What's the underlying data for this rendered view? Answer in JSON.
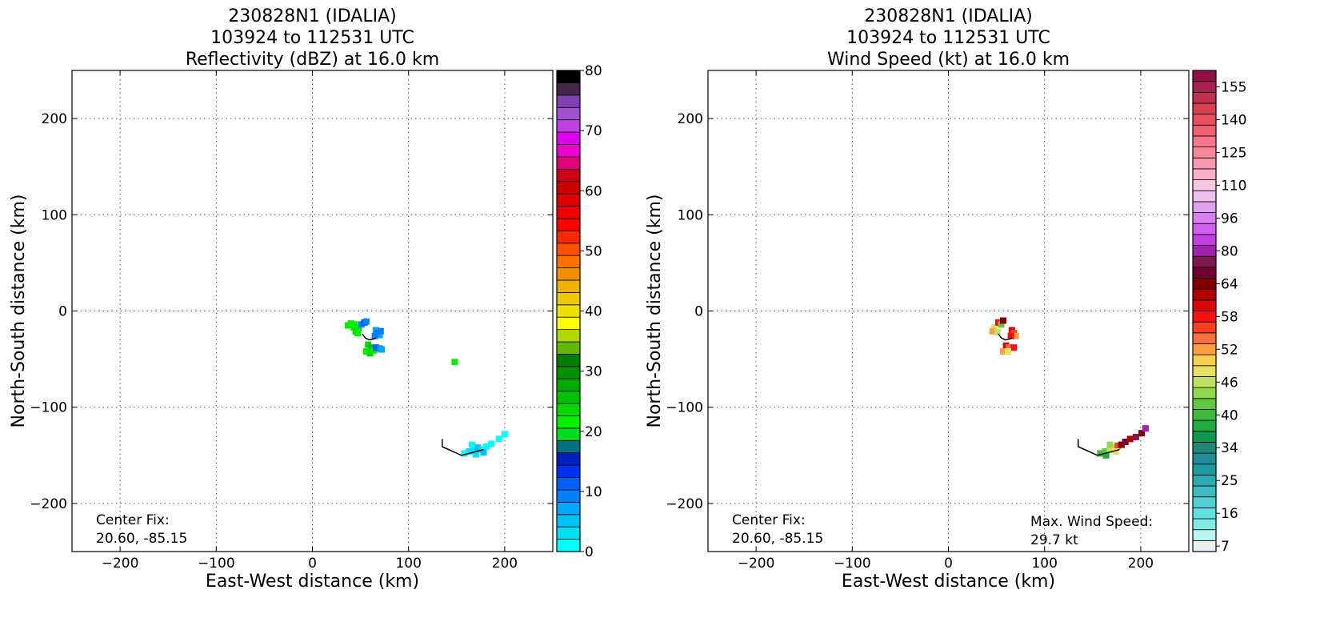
{
  "chart_data": [
    {
      "type": "heatmap",
      "title_lines": [
        "230828N1 (IDALIA)",
        "103924 to 112531 UTC",
        "Reflectivity (dBZ) at 16.0 km"
      ],
      "xlabel": "East-West distance (km)",
      "ylabel": "North-South distance (km)",
      "xlim": [
        -250,
        250
      ],
      "ylim": [
        -250,
        250
      ],
      "xticks": [
        -200,
        -100,
        0,
        100,
        200
      ],
      "yticks": [
        -200,
        -100,
        0,
        100,
        200
      ],
      "xtick_labels": [
        "−200",
        "−100",
        "0",
        "100",
        "200"
      ],
      "ytick_labels": [
        "−200",
        "−100",
        "0",
        "100",
        "200"
      ],
      "grid": true,
      "annotations": [
        {
          "lines": [
            "Center Fix:",
            "20.60, -85.15"
          ],
          "placement": "bottom-left"
        }
      ],
      "colorbar": {
        "min": 0,
        "max": 80,
        "tick_values": [
          0,
          10,
          20,
          30,
          40,
          50,
          60,
          70,
          80
        ],
        "tick_labels": [
          "0",
          "10",
          "20",
          "30",
          "40",
          "50",
          "60",
          "70",
          "80"
        ],
        "colors": [
          "#00ffff",
          "#00e0f0",
          "#00c0f5",
          "#00a6ff",
          "#0080ff",
          "#0060ff",
          "#0030f0",
          "#0020c0",
          "#007080",
          "#00dd20",
          "#00f000",
          "#00d800",
          "#00c000",
          "#00aa00",
          "#009000",
          "#007c00",
          "#60b800",
          "#b0d800",
          "#ffff00",
          "#f0e000",
          "#ecc800",
          "#f0b000",
          "#f09000",
          "#ff7000",
          "#ff5000",
          "#ff2800",
          "#ff0000",
          "#ee0000",
          "#dd0000",
          "#cc0000",
          "#c80018",
          "#e0007a",
          "#f000d0",
          "#e000f0",
          "#c040e0",
          "#a050d0",
          "#8040b0",
          "#402848",
          "#000000"
        ]
      },
      "echoes": [
        {
          "x": 37,
          "y": -15,
          "value": 22
        },
        {
          "x": 40,
          "y": -13,
          "value": 22
        },
        {
          "x": 43,
          "y": -17,
          "value": 22
        },
        {
          "x": 45,
          "y": -21,
          "value": 23
        },
        {
          "x": 44,
          "y": -14,
          "value": 22
        },
        {
          "x": 48,
          "y": -18,
          "value": 21
        },
        {
          "x": 47,
          "y": -23,
          "value": 22
        },
        {
          "x": 51,
          "y": -14,
          "value": 9
        },
        {
          "x": 54,
          "y": -12,
          "value": 11
        },
        {
          "x": 56,
          "y": -11,
          "value": 10
        },
        {
          "x": 66,
          "y": -20,
          "value": 8
        },
        {
          "x": 68,
          "y": -23,
          "value": 12
        },
        {
          "x": 70,
          "y": -25,
          "value": 7
        },
        {
          "x": 65,
          "y": -26,
          "value": 9
        },
        {
          "x": 71,
          "y": -21,
          "value": 10
        },
        {
          "x": 58,
          "y": -35,
          "value": 24
        },
        {
          "x": 61,
          "y": -38,
          "value": 25
        },
        {
          "x": 56,
          "y": -42,
          "value": 22
        },
        {
          "x": 60,
          "y": -44,
          "value": 23
        },
        {
          "x": 64,
          "y": -41,
          "value": 22
        },
        {
          "x": 66,
          "y": -38,
          "value": 11
        },
        {
          "x": 70,
          "y": -39,
          "value": 9
        },
        {
          "x": 72,
          "y": -40,
          "value": 8
        },
        {
          "x": 148,
          "y": -53,
          "value": 21
        },
        {
          "x": 158,
          "y": -148,
          "value": 2
        },
        {
          "x": 163,
          "y": -146,
          "value": 3
        },
        {
          "x": 168,
          "y": -145,
          "value": 4
        },
        {
          "x": 166,
          "y": -139,
          "value": 2
        },
        {
          "x": 172,
          "y": -142,
          "value": 5
        },
        {
          "x": 176,
          "y": -144,
          "value": 3
        },
        {
          "x": 181,
          "y": -141,
          "value": 2
        },
        {
          "x": 186,
          "y": -138,
          "value": 1
        },
        {
          "x": 178,
          "y": -147,
          "value": 6
        },
        {
          "x": 170,
          "y": -149,
          "value": 4
        },
        {
          "x": 194,
          "y": -133,
          "value": 1
        },
        {
          "x": 200,
          "y": -128,
          "value": 2
        }
      ],
      "track": [
        [
          52,
          -24
        ],
        [
          55,
          -28
        ],
        [
          59,
          -30
        ],
        [
          64,
          -29
        ],
        [
          66,
          -28
        ]
      ],
      "track2": [
        [
          135,
          -133
        ],
        [
          135,
          -141
        ],
        [
          155,
          -150
        ],
        [
          178,
          -144
        ]
      ]
    },
    {
      "type": "heatmap",
      "title_lines": [
        "230828N1 (IDALIA)",
        "103924 to 112531 UTC",
        "Wind Speed (kt) at 16.0 km"
      ],
      "xlabel": "East-West distance (km)",
      "ylabel": "North-South distance (km)",
      "xlim": [
        -250,
        250
      ],
      "ylim": [
        -250,
        250
      ],
      "xticks": [
        -200,
        -100,
        0,
        100,
        200
      ],
      "yticks": [
        -200,
        -100,
        0,
        100,
        200
      ],
      "xtick_labels": [
        "−200",
        "−100",
        "0",
        "100",
        "200"
      ],
      "ytick_labels": [
        "−200",
        "−100",
        "0",
        "100",
        "200"
      ],
      "grid": true,
      "annotations": [
        {
          "lines": [
            "Center Fix:",
            "20.60, -85.15"
          ],
          "placement": "bottom-left"
        },
        {
          "lines": [
            "Max. Wind Speed:",
            "29.7 kt"
          ],
          "placement": "bottom-right"
        }
      ],
      "colorbar": {
        "tick_labels": [
          "7",
          "16",
          "25",
          "34",
          "40",
          "46",
          "52",
          "58",
          "64",
          "80",
          "96",
          "110",
          "125",
          "140",
          "155"
        ],
        "tick_bins": [
          0,
          3,
          6,
          9,
          12,
          15,
          18,
          21,
          24,
          27,
          30,
          33,
          36,
          39,
          42
        ],
        "colors": [
          "#e8f0f0",
          "#b8f4f0",
          "#80ece8",
          "#60e0e0",
          "#50d0d4",
          "#40bcc0",
          "#30a8b0",
          "#2098a0",
          "#208c98",
          "#208878",
          "#109850",
          "#20aa40",
          "#40b840",
          "#60c840",
          "#90d850",
          "#c0e060",
          "#e8e060",
          "#f8d050",
          "#f8a040",
          "#f87040",
          "#f84020",
          "#f81010",
          "#d80808",
          "#b00000",
          "#800000",
          "#700030",
          "#801850",
          "#a020b0",
          "#c040e0",
          "#d060f0",
          "#d880f0",
          "#e0a0f0",
          "#f0c0f0",
          "#f8c8e0",
          "#f8b0c8",
          "#f898b0",
          "#f88898",
          "#f87888",
          "#f06070",
          "#e85060",
          "#d84050",
          "#c03050",
          "#a82050",
          "#901048"
        ]
      },
      "echoes": [
        {
          "x": 48,
          "y": -17,
          "value": 16
        },
        {
          "x": 52,
          "y": -12,
          "value": 21
        },
        {
          "x": 55,
          "y": -14,
          "value": 13
        },
        {
          "x": 57,
          "y": -10,
          "value": 24
        },
        {
          "x": 46,
          "y": -21,
          "value": 18
        },
        {
          "x": 51,
          "y": -22,
          "value": 15
        },
        {
          "x": 66,
          "y": -20,
          "value": 22
        },
        {
          "x": 68,
          "y": -23,
          "value": 20
        },
        {
          "x": 70,
          "y": -26,
          "value": 18
        },
        {
          "x": 65,
          "y": -26,
          "value": 21
        },
        {
          "x": 60,
          "y": -36,
          "value": 22
        },
        {
          "x": 63,
          "y": -38,
          "value": 19
        },
        {
          "x": 68,
          "y": -38,
          "value": 21
        },
        {
          "x": 57,
          "y": -42,
          "value": 18
        },
        {
          "x": 62,
          "y": -42,
          "value": 16
        },
        {
          "x": 158,
          "y": -148,
          "value": 12
        },
        {
          "x": 163,
          "y": -146,
          "value": 13
        },
        {
          "x": 168,
          "y": -144,
          "value": 15
        },
        {
          "x": 172,
          "y": -142,
          "value": 17
        },
        {
          "x": 176,
          "y": -140,
          "value": 20
        },
        {
          "x": 180,
          "y": -139,
          "value": 24
        },
        {
          "x": 168,
          "y": -139,
          "value": 14
        },
        {
          "x": 184,
          "y": -136,
          "value": 25
        },
        {
          "x": 189,
          "y": -133,
          "value": 23
        },
        {
          "x": 195,
          "y": -131,
          "value": 26
        },
        {
          "x": 201,
          "y": -127,
          "value": 24
        },
        {
          "x": 205,
          "y": -122,
          "value": 27
        },
        {
          "x": 174,
          "y": -146,
          "value": 16
        },
        {
          "x": 164,
          "y": -150,
          "value": 11
        }
      ],
      "track": [
        [
          52,
          -24
        ],
        [
          55,
          -28
        ],
        [
          59,
          -30
        ],
        [
          64,
          -29
        ],
        [
          66,
          -28
        ]
      ],
      "track2": [
        [
          135,
          -133
        ],
        [
          135,
          -141
        ],
        [
          155,
          -150
        ],
        [
          178,
          -144
        ]
      ]
    }
  ]
}
